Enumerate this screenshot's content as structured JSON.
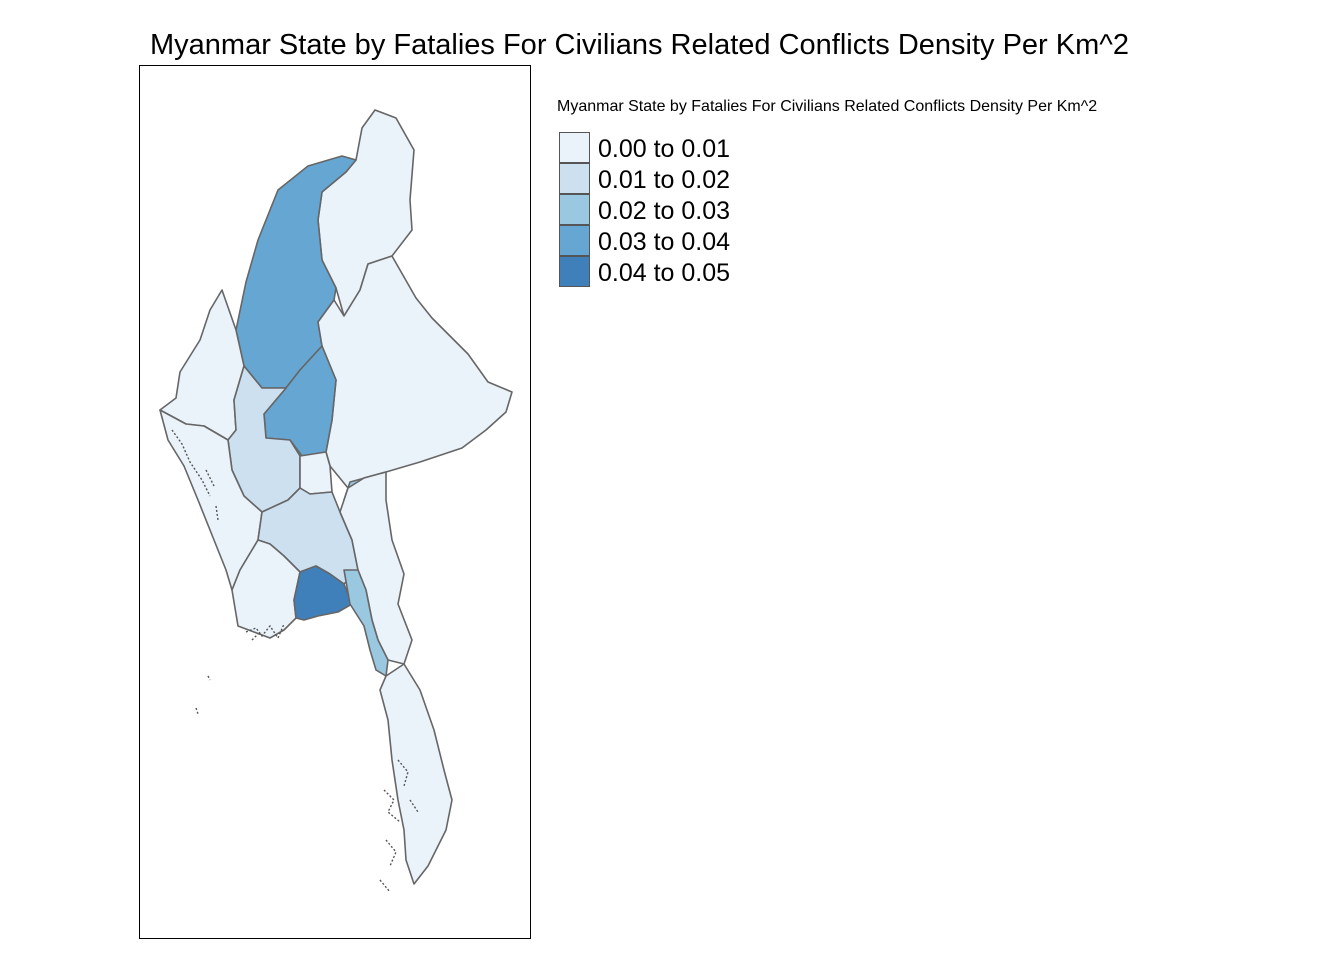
{
  "title": "Myanmar State by Fatalies For Civilians Related Conflicts Density Per Km^2",
  "legend": {
    "title": "Myanmar State by Fatalies For Civilians Related Conflicts Density Per Km^2",
    "items": [
      {
        "label": "0.00 to 0.01",
        "color": "#eaf2fa"
      },
      {
        "label": "0.01 to 0.02",
        "color": "#cde0f0"
      },
      {
        "label": "0.02 to 0.03",
        "color": "#9ac8e1"
      },
      {
        "label": "0.03 to 0.04",
        "color": "#66a6d3"
      },
      {
        "label": "0.04 to 0.05",
        "color": "#3f80bb"
      }
    ]
  },
  "regions": [
    {
      "id": "kachin",
      "class": 0
    },
    {
      "id": "sagaing",
      "class": 3
    },
    {
      "id": "shan",
      "class": 0
    },
    {
      "id": "chin",
      "class": 0
    },
    {
      "id": "mandalay",
      "class": 3
    },
    {
      "id": "magway",
      "class": 1
    },
    {
      "id": "rakhine",
      "class": 0
    },
    {
      "id": "naypyitaw",
      "class": 0
    },
    {
      "id": "kayah",
      "class": 2
    },
    {
      "id": "bago",
      "class": 1
    },
    {
      "id": "ayeyarwady",
      "class": 0
    },
    {
      "id": "yangon",
      "class": 4
    },
    {
      "id": "kayin",
      "class": 0
    },
    {
      "id": "mon",
      "class": 2
    },
    {
      "id": "tanintharyi",
      "class": 0
    }
  ]
}
